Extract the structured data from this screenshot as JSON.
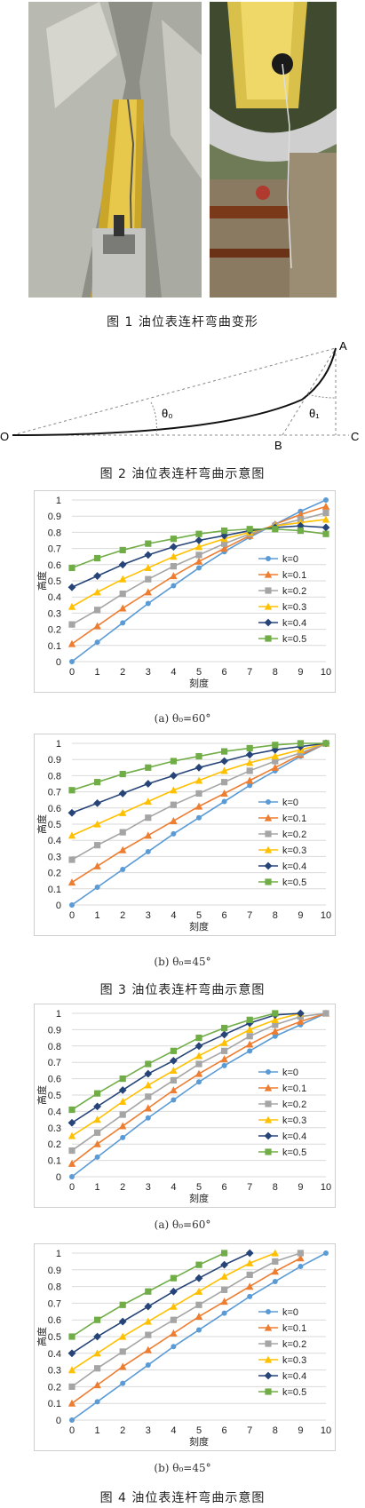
{
  "fig1": {
    "caption": "图 1   油位表连杆弯曲变形",
    "photo_left": "bent-rod-inside-tank-photo",
    "photo_right": "oil-gauge-installation-photo"
  },
  "fig2": {
    "caption": "图 2  油位表连杆弯曲示意图",
    "labels": {
      "O": "O",
      "A": "A",
      "B": "B",
      "C": "C",
      "theta0": "θ₀",
      "theta1": "θ₁"
    }
  },
  "fig3": {
    "caption": "图 3  油位表连杆弯曲示意图"
  },
  "fig4": {
    "caption": "图 4  油位表连杆弯曲示意图"
  },
  "chart_data": [
    {
      "type": "line",
      "id": "fig3a",
      "subtitle": "(a) θ₀=60°",
      "xlabel": "刻度",
      "ylabel": "高度",
      "xlim": [
        0,
        10
      ],
      "ylim": [
        0,
        1
      ],
      "x_ticks": [
        "0",
        "1",
        "2",
        "3",
        "4",
        "5",
        "6",
        "7",
        "8",
        "9",
        "10"
      ],
      "y_ticks": [
        "0",
        "0.1",
        "0.2",
        "0.3",
        "0.4",
        "0.5",
        "0.6",
        "0.7",
        "0.8",
        "0.9",
        "1"
      ],
      "legend": "right",
      "series": [
        {
          "name": "k=0",
          "color": "#5b9bd5",
          "marker": "circle",
          "x": [
            0,
            1,
            2,
            3,
            4,
            5,
            6,
            7,
            8,
            9,
            10
          ],
          "y": [
            0,
            0.12,
            0.24,
            0.36,
            0.47,
            0.58,
            0.68,
            0.77,
            0.85,
            0.93,
            1.0
          ]
        },
        {
          "name": "k=0.1",
          "color": "#ed7d31",
          "marker": "triangle",
          "x": [
            0,
            1,
            2,
            3,
            4,
            5,
            6,
            7,
            8,
            9,
            10
          ],
          "y": [
            0.11,
            0.22,
            0.33,
            0.43,
            0.53,
            0.62,
            0.7,
            0.78,
            0.85,
            0.91,
            0.96
          ]
        },
        {
          "name": "k=0.2",
          "color": "#a5a5a5",
          "marker": "square",
          "x": [
            0,
            1,
            2,
            3,
            4,
            5,
            6,
            7,
            8,
            9,
            10
          ],
          "y": [
            0.23,
            0.32,
            0.42,
            0.51,
            0.59,
            0.66,
            0.73,
            0.79,
            0.84,
            0.88,
            0.92
          ]
        },
        {
          "name": "k=0.3",
          "color": "#ffc000",
          "marker": "triangle",
          "x": [
            0,
            1,
            2,
            3,
            4,
            5,
            6,
            7,
            8,
            9,
            10
          ],
          "y": [
            0.34,
            0.43,
            0.51,
            0.58,
            0.65,
            0.71,
            0.76,
            0.8,
            0.84,
            0.86,
            0.88
          ]
        },
        {
          "name": "k=0.4",
          "color": "#264478",
          "marker": "diamond",
          "x": [
            0,
            1,
            2,
            3,
            4,
            5,
            6,
            7,
            8,
            9,
            10
          ],
          "y": [
            0.46,
            0.53,
            0.6,
            0.66,
            0.71,
            0.75,
            0.78,
            0.81,
            0.83,
            0.84,
            0.83
          ]
        },
        {
          "name": "k=0.5",
          "color": "#70ad47",
          "marker": "square",
          "x": [
            0,
            1,
            2,
            3,
            4,
            5,
            6,
            7,
            8,
            9,
            10
          ],
          "y": [
            0.58,
            0.64,
            0.69,
            0.73,
            0.76,
            0.79,
            0.81,
            0.82,
            0.82,
            0.81,
            0.79
          ]
        }
      ]
    },
    {
      "type": "line",
      "id": "fig3b",
      "subtitle": "(b) θ₀=45°",
      "xlabel": "刻度",
      "ylabel": "高度",
      "xlim": [
        0,
        10
      ],
      "ylim": [
        0,
        1
      ],
      "x_ticks": [
        "0",
        "1",
        "2",
        "3",
        "4",
        "5",
        "6",
        "7",
        "8",
        "9",
        "10"
      ],
      "y_ticks": [
        "0",
        "0.1",
        "0.2",
        "0.3",
        "0.4",
        "0.5",
        "0.6",
        "0.7",
        "0.8",
        "0.9",
        "1"
      ],
      "legend": "right",
      "series": [
        {
          "name": "k=0",
          "color": "#5b9bd5",
          "marker": "circle",
          "x": [
            0,
            1,
            2,
            3,
            4,
            5,
            6,
            7,
            8,
            9,
            10
          ],
          "y": [
            0,
            0.11,
            0.22,
            0.33,
            0.44,
            0.54,
            0.64,
            0.74,
            0.83,
            0.92,
            1.0
          ]
        },
        {
          "name": "k=0.1",
          "color": "#ed7d31",
          "marker": "triangle",
          "x": [
            0,
            1,
            2,
            3,
            4,
            5,
            6,
            7,
            8,
            9,
            10
          ],
          "y": [
            0.14,
            0.24,
            0.34,
            0.43,
            0.52,
            0.61,
            0.69,
            0.77,
            0.85,
            0.93,
            1.0
          ]
        },
        {
          "name": "k=0.2",
          "color": "#a5a5a5",
          "marker": "square",
          "x": [
            0,
            1,
            2,
            3,
            4,
            5,
            6,
            7,
            8,
            9,
            10
          ],
          "y": [
            0.28,
            0.37,
            0.45,
            0.54,
            0.62,
            0.69,
            0.76,
            0.83,
            0.89,
            0.94,
            1.0
          ]
        },
        {
          "name": "k=0.3",
          "color": "#ffc000",
          "marker": "triangle",
          "x": [
            0,
            1,
            2,
            3,
            4,
            5,
            6,
            7,
            8,
            9,
            10
          ],
          "y": [
            0.43,
            0.5,
            0.57,
            0.64,
            0.71,
            0.77,
            0.83,
            0.88,
            0.92,
            0.96,
            1.0
          ]
        },
        {
          "name": "k=0.4",
          "color": "#264478",
          "marker": "diamond",
          "x": [
            0,
            1,
            2,
            3,
            4,
            5,
            6,
            7,
            8,
            9,
            10
          ],
          "y": [
            0.57,
            0.63,
            0.69,
            0.75,
            0.8,
            0.85,
            0.89,
            0.93,
            0.96,
            0.98,
            1.0
          ]
        },
        {
          "name": "k=0.5",
          "color": "#70ad47",
          "marker": "square",
          "x": [
            0,
            1,
            2,
            3,
            4,
            5,
            6,
            7,
            8,
            9,
            10
          ],
          "y": [
            0.71,
            0.76,
            0.81,
            0.85,
            0.89,
            0.92,
            0.95,
            0.97,
            0.99,
            1.0,
            1.0
          ]
        }
      ]
    },
    {
      "type": "line",
      "id": "fig4a",
      "subtitle": "(a) θ₀=60°",
      "xlabel": "刻度",
      "ylabel": "高度",
      "xlim": [
        0,
        10
      ],
      "ylim": [
        0,
        1
      ],
      "x_ticks": [
        "0",
        "1",
        "2",
        "3",
        "4",
        "5",
        "6",
        "7",
        "8",
        "9",
        "10"
      ],
      "y_ticks": [
        "0",
        "0.1",
        "0.2",
        "0.3",
        "0.4",
        "0.5",
        "0.6",
        "0.7",
        "0.8",
        "0.9",
        "1"
      ],
      "legend": "right",
      "series": [
        {
          "name": "k=0",
          "color": "#5b9bd5",
          "marker": "circle",
          "x": [
            0,
            1,
            2,
            3,
            4,
            5,
            6,
            7,
            8,
            9,
            10
          ],
          "y": [
            0,
            0.12,
            0.24,
            0.36,
            0.47,
            0.58,
            0.68,
            0.77,
            0.86,
            0.93,
            1.0
          ]
        },
        {
          "name": "k=0.1",
          "color": "#ed7d31",
          "marker": "triangle",
          "x": [
            0,
            1,
            2,
            3,
            4,
            5,
            6,
            7,
            8,
            9,
            10
          ],
          "y": [
            0.08,
            0.2,
            0.31,
            0.42,
            0.53,
            0.63,
            0.72,
            0.81,
            0.89,
            0.95,
            1.0
          ]
        },
        {
          "name": "k=0.2",
          "color": "#a5a5a5",
          "marker": "square",
          "x": [
            0,
            1,
            2,
            3,
            4,
            5,
            6,
            7,
            8,
            9,
            10
          ],
          "y": [
            0.16,
            0.27,
            0.38,
            0.49,
            0.59,
            0.69,
            0.77,
            0.86,
            0.93,
            0.98,
            1.0
          ]
        },
        {
          "name": "k=0.3",
          "color": "#ffc000",
          "marker": "triangle",
          "x": [
            0,
            1,
            2,
            3,
            4,
            5,
            6,
            7,
            8,
            9
          ],
          "y": [
            0.25,
            0.35,
            0.46,
            0.56,
            0.65,
            0.74,
            0.82,
            0.9,
            0.96,
            1.0
          ]
        },
        {
          "name": "k=0.4",
          "color": "#264478",
          "marker": "diamond",
          "x": [
            0,
            1,
            2,
            3,
            4,
            5,
            6,
            7,
            8,
            9
          ],
          "y": [
            0.33,
            0.43,
            0.53,
            0.63,
            0.71,
            0.8,
            0.87,
            0.94,
            0.99,
            1.0
          ]
        },
        {
          "name": "k=0.5",
          "color": "#70ad47",
          "marker": "square",
          "x": [
            0,
            1,
            2,
            3,
            4,
            5,
            6,
            7,
            8
          ],
          "y": [
            0.41,
            0.51,
            0.6,
            0.69,
            0.77,
            0.85,
            0.91,
            0.96,
            1.0
          ]
        }
      ]
    },
    {
      "type": "line",
      "id": "fig4b",
      "subtitle": "(b) θ₀=45°",
      "xlabel": "刻度",
      "ylabel": "高度",
      "xlim": [
        0,
        10
      ],
      "ylim": [
        0,
        1
      ],
      "x_ticks": [
        "0",
        "1",
        "2",
        "3",
        "4",
        "5",
        "6",
        "7",
        "8",
        "9",
        "10"
      ],
      "y_ticks": [
        "0",
        "0.1",
        "0.2",
        "0.3",
        "0.4",
        "0.5",
        "0.6",
        "0.7",
        "0.8",
        "0.9",
        "1"
      ],
      "legend": "right",
      "series": [
        {
          "name": "k=0",
          "color": "#5b9bd5",
          "marker": "circle",
          "x": [
            0,
            1,
            2,
            3,
            4,
            5,
            6,
            7,
            8,
            9,
            10
          ],
          "y": [
            0,
            0.11,
            0.22,
            0.33,
            0.44,
            0.54,
            0.64,
            0.74,
            0.83,
            0.92,
            1.0
          ]
        },
        {
          "name": "k=0.1",
          "color": "#ed7d31",
          "marker": "triangle",
          "x": [
            0,
            1,
            2,
            3,
            4,
            5,
            6,
            7,
            8,
            9
          ],
          "y": [
            0.1,
            0.21,
            0.32,
            0.42,
            0.52,
            0.62,
            0.71,
            0.8,
            0.89,
            0.97
          ]
        },
        {
          "name": "k=0.2",
          "color": "#a5a5a5",
          "marker": "square",
          "x": [
            0,
            1,
            2,
            3,
            4,
            5,
            6,
            7,
            8,
            9
          ],
          "y": [
            0.2,
            0.31,
            0.41,
            0.51,
            0.6,
            0.69,
            0.78,
            0.87,
            0.95,
            1.0
          ]
        },
        {
          "name": "k=0.3",
          "color": "#ffc000",
          "marker": "triangle",
          "x": [
            0,
            1,
            2,
            3,
            4,
            5,
            6,
            7,
            8
          ],
          "y": [
            0.3,
            0.4,
            0.5,
            0.59,
            0.68,
            0.77,
            0.86,
            0.94,
            1.0
          ]
        },
        {
          "name": "k=0.4",
          "color": "#264478",
          "marker": "diamond",
          "x": [
            0,
            1,
            2,
            3,
            4,
            5,
            6,
            7
          ],
          "y": [
            0.4,
            0.5,
            0.59,
            0.68,
            0.77,
            0.85,
            0.93,
            1.0
          ]
        },
        {
          "name": "k=0.5",
          "color": "#70ad47",
          "marker": "square",
          "x": [
            0,
            1,
            2,
            3,
            4,
            5,
            6
          ],
          "y": [
            0.5,
            0.6,
            0.69,
            0.77,
            0.85,
            0.93,
            1.0
          ]
        }
      ]
    }
  ]
}
